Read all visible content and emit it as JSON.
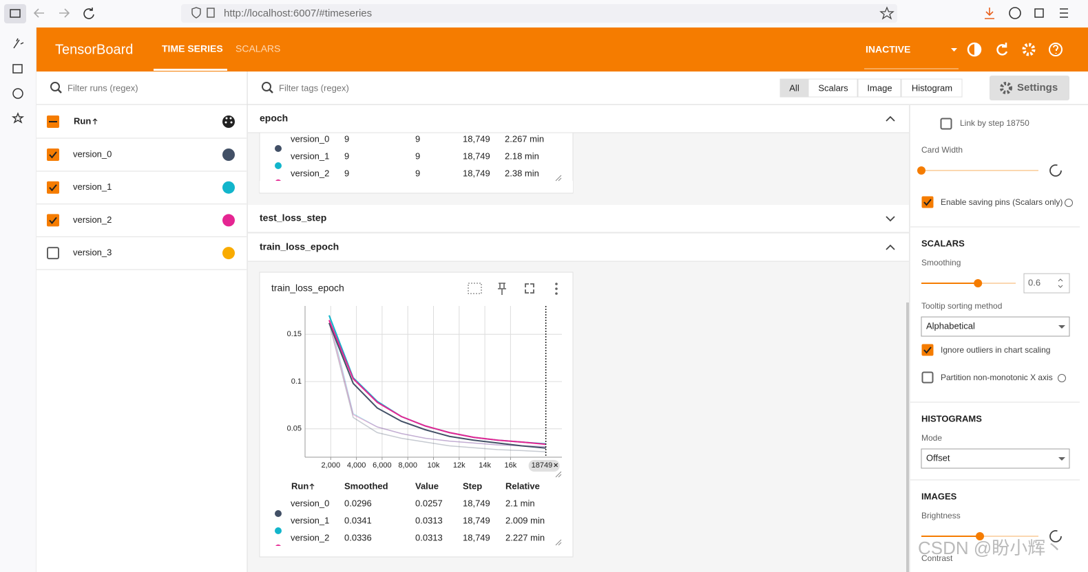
{
  "browser": {
    "url": "http://localhost:6007/#timeseries"
  },
  "header": {
    "brand": "TensorBoard",
    "tabs": [
      "TIME SERIES",
      "SCALARS"
    ],
    "status": "INACTIVE"
  },
  "runs": {
    "filter": "Filter runs (regex)",
    "column": "Run",
    "items": [
      {
        "name": "version_0",
        "color": "#425066",
        "checked": true
      },
      {
        "name": "version_1",
        "color": "#12b5cb",
        "checked": true
      },
      {
        "name": "version_2",
        "color": "#e52592",
        "checked": true
      },
      {
        "name": "version_3",
        "color": "#f9ab00",
        "checked": false
      }
    ]
  },
  "toolbar": {
    "filter": "Filter tags (regex)",
    "types": [
      "All",
      "Scalars",
      "Image",
      "Histogram"
    ],
    "settings": "Settings"
  },
  "groups": [
    "epoch",
    "test_loss_step",
    "train_loss_epoch"
  ],
  "epoch_table": {
    "rows": [
      [
        "9",
        "9",
        "18,749",
        "2.267 min"
      ],
      [
        "9",
        "9",
        "18,749",
        "2.18 min"
      ],
      [
        "9",
        "9",
        "18,749",
        "2.38 min"
      ]
    ]
  },
  "card": {
    "title": "train_loss_epoch",
    "columns": [
      "Run",
      "Smoothed",
      "Value",
      "Step",
      "Relative"
    ],
    "rows": [
      {
        "step": "18,749",
        "relative": "2.1 min"
      },
      {
        "step": "18,749",
        "relative": "2.009 min"
      },
      {
        "step": "18,749",
        "relative": "2.227 min"
      }
    ]
  },
  "chart_data": {
    "type": "line",
    "x": [
      1874,
      3749,
      5624,
      7499,
      9374,
      11249,
      13124,
      14999,
      16874,
      18749
    ],
    "xlim": [
      0,
      20000
    ],
    "xticks": [
      {
        "value": 2000,
        "label": "2,000"
      },
      {
        "value": 4000,
        "label": "4,000"
      },
      {
        "value": 6000,
        "label": "6,000"
      },
      {
        "value": 8000,
        "label": "8,000"
      },
      {
        "value": 10000,
        "label": "10k"
      },
      {
        "value": 12000,
        "label": "12k"
      },
      {
        "value": 14000,
        "label": "14k"
      },
      {
        "value": 16000,
        "label": "16k"
      }
    ],
    "ylim": [
      0.02,
      0.18
    ],
    "yticks": [
      0.05,
      0.1,
      0.15
    ],
    "grid": true,
    "series": [
      {
        "name": "version_0",
        "color": "#425066",
        "values": [
          0.162,
          0.098,
          0.072,
          0.058,
          0.049,
          0.042,
          0.038,
          0.035,
          0.032,
          0.0296
        ],
        "raw_values": [
          0.162,
          0.062,
          0.046,
          0.04,
          0.036,
          0.032,
          0.03,
          0.028,
          0.027,
          0.0257
        ]
      },
      {
        "name": "version_1",
        "color": "#12b5cb",
        "values": [
          0.17,
          0.104,
          0.079,
          0.063,
          0.053,
          0.046,
          0.041,
          0.038,
          0.036,
          0.0341
        ],
        "raw_values": [
          0.17,
          0.066,
          0.052,
          0.045,
          0.04,
          0.037,
          0.035,
          0.033,
          0.032,
          0.0313
        ]
      },
      {
        "name": "version_2",
        "color": "#e52592",
        "values": [
          0.165,
          0.103,
          0.078,
          0.063,
          0.053,
          0.046,
          0.041,
          0.038,
          0.036,
          0.0336
        ],
        "raw_values": [
          0.165,
          0.065,
          0.052,
          0.045,
          0.04,
          0.037,
          0.035,
          0.033,
          0.032,
          0.0313
        ]
      }
    ],
    "cursor_step": 18749
  },
  "settings": {
    "link_by_step": {
      "label": "Link by step 18750",
      "checked": false
    },
    "card_width": "Card Width",
    "saving_pins": {
      "label": "Enable saving pins (Scalars only)",
      "checked": true
    },
    "scalars": {
      "title": "SCALARS",
      "smoothing_label": "Smoothing",
      "smoothing": 0.6,
      "sort_label": "Tooltip sorting method",
      "sort": "Alphabetical",
      "ignore_outliers": {
        "label": "Ignore outliers in chart scaling",
        "checked": true
      },
      "partition": {
        "label": "Partition non-monotonic X axis",
        "checked": false
      }
    },
    "histograms": {
      "title": "HISTOGRAMS",
      "mode_label": "Mode",
      "mode": "Offset"
    },
    "images": {
      "title": "IMAGES",
      "brightness_label": "Brightness",
      "contrast_label": "Contrast"
    }
  },
  "watermark": "CSDN @盼小辉丶"
}
